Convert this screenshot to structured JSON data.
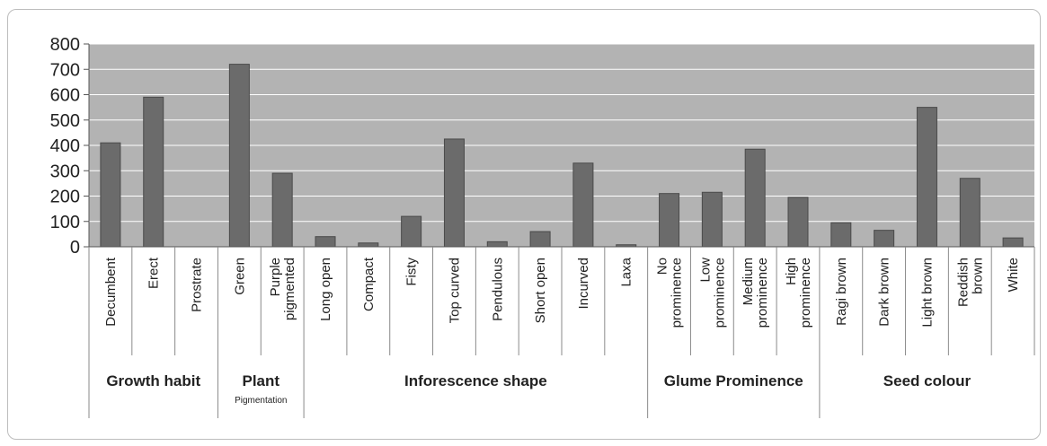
{
  "chart_data": {
    "type": "bar",
    "categories": [
      {
        "lines": [
          "Decumbent"
        ],
        "value": 410
      },
      {
        "lines": [
          "Erect"
        ],
        "value": 590
      },
      {
        "lines": [
          "Prostrate"
        ],
        "value": 0
      },
      {
        "lines": [
          "Green"
        ],
        "value": 720
      },
      {
        "lines": [
          "Purple",
          "pigmented"
        ],
        "value": 290
      },
      {
        "lines": [
          "Long open"
        ],
        "value": 40
      },
      {
        "lines": [
          "Compact"
        ],
        "value": 15
      },
      {
        "lines": [
          "Fisty"
        ],
        "value": 120
      },
      {
        "lines": [
          "Top curved"
        ],
        "value": 425
      },
      {
        "lines": [
          "Pendulous"
        ],
        "value": 20
      },
      {
        "lines": [
          "Short open"
        ],
        "value": 60
      },
      {
        "lines": [
          "Incurved"
        ],
        "value": 330
      },
      {
        "lines": [
          "Laxa"
        ],
        "value": 8
      },
      {
        "lines": [
          "No",
          "prominence"
        ],
        "value": 210
      },
      {
        "lines": [
          "Low",
          "prominence"
        ],
        "value": 215
      },
      {
        "lines": [
          "Medium",
          "prominence"
        ],
        "value": 385
      },
      {
        "lines": [
          "High",
          "prominence"
        ],
        "value": 195
      },
      {
        "lines": [
          "Ragi brown"
        ],
        "value": 95
      },
      {
        "lines": [
          "Dark brown"
        ],
        "value": 65
      },
      {
        "lines": [
          "Light brown"
        ],
        "value": 550
      },
      {
        "lines": [
          "Reddish",
          "brown"
        ],
        "value": 270
      },
      {
        "lines": [
          "White"
        ],
        "value": 35
      }
    ],
    "groups": [
      {
        "label": "Growth habit",
        "sublabel": "",
        "start": 0,
        "end": 2
      },
      {
        "label": "Plant",
        "sublabel": "Pigmentation",
        "start": 3,
        "end": 4
      },
      {
        "label": "Inforescence shape",
        "sublabel": "",
        "start": 5,
        "end": 12
      },
      {
        "label": "Glume Prominence",
        "sublabel": "",
        "start": 13,
        "end": 16
      },
      {
        "label": "Seed colour",
        "sublabel": "",
        "start": 17,
        "end": 21
      }
    ],
    "ylim": [
      0,
      800
    ],
    "yticks": [
      "0",
      "100",
      "200",
      "300",
      "400",
      "500",
      "600",
      "700",
      "800"
    ],
    "grid": true,
    "colors": {
      "plot_background": "#b3b3b3",
      "bar": "#6b6b6b",
      "bar_edge": "#4a4a4a",
      "gridline": "#ffffff",
      "axis": "#555555"
    }
  }
}
